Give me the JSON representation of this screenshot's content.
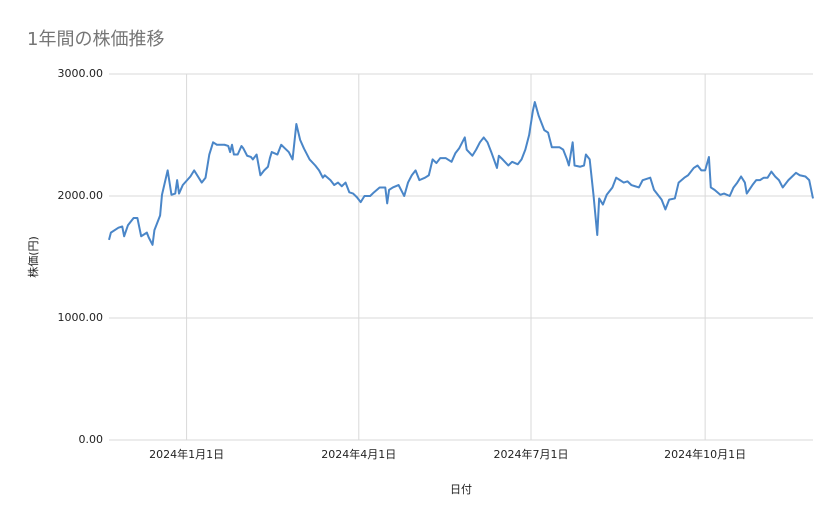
{
  "chart_data": {
    "type": "line",
    "title": "1年間の株価推移",
    "x_label": "日付",
    "y_label": "株価(円)",
    "color": "#4a86c8",
    "grid": true,
    "xlim": [
      "2023-11-21",
      "2024-11-27"
    ],
    "xticks": [
      {
        "value": "2024-01-01",
        "label": "2024年1月1日"
      },
      {
        "value": "2024-04-01",
        "label": "2024年4月1日"
      },
      {
        "value": "2024-07-01",
        "label": "2024年7月1日"
      },
      {
        "value": "2024-10-01",
        "label": "2024年10月1日"
      }
    ],
    "ylim": [
      0,
      3000
    ],
    "yticks": [
      {
        "value": 0,
        "label": "0.00"
      },
      {
        "value": 1000,
        "label": "1000.00"
      },
      {
        "value": 2000,
        "label": "2000.00"
      },
      {
        "value": 3000,
        "label": "3000.00"
      }
    ],
    "x": [
      "2023-11-21",
      "2023-11-22",
      "2023-11-26",
      "2023-11-28",
      "2023-11-29",
      "2023-12-01",
      "2023-12-04",
      "2023-12-06",
      "2023-12-08",
      "2023-12-11",
      "2023-12-12",
      "2023-12-14",
      "2023-12-15",
      "2023-12-18",
      "2023-12-19",
      "2023-12-22",
      "2023-12-24",
      "2023-12-26",
      "2023-12-27",
      "2023-12-28",
      "2023-12-30",
      "2024-01-03",
      "2024-01-05",
      "2024-01-09",
      "2024-01-11",
      "2024-01-13",
      "2024-01-15",
      "2024-01-17",
      "2024-01-21",
      "2024-01-23",
      "2024-01-24",
      "2024-01-25",
      "2024-01-26",
      "2024-01-28",
      "2024-01-30",
      "2024-01-31",
      "2024-02-02",
      "2024-02-04",
      "2024-02-05",
      "2024-02-07",
      "2024-02-09",
      "2024-02-11",
      "2024-02-13",
      "2024-02-14",
      "2024-02-15",
      "2024-02-18",
      "2024-02-20",
      "2024-02-22",
      "2024-02-24",
      "2024-02-26",
      "2024-02-28",
      "2024-03-01",
      "2024-03-03",
      "2024-03-06",
      "2024-03-09",
      "2024-03-11",
      "2024-03-13",
      "2024-03-14",
      "2024-03-17",
      "2024-03-19",
      "2024-03-21",
      "2024-03-23",
      "2024-03-25",
      "2024-03-27",
      "2024-03-29",
      "2024-03-31",
      "2024-04-02",
      "2024-04-04",
      "2024-04-07",
      "2024-04-09",
      "2024-04-12",
      "2024-04-15",
      "2024-04-16",
      "2024-04-17",
      "2024-04-19",
      "2024-04-22",
      "2024-04-24",
      "2024-04-25",
      "2024-04-27",
      "2024-04-29",
      "2024-05-01",
      "2024-05-03",
      "2024-05-06",
      "2024-05-08",
      "2024-05-10",
      "2024-05-12",
      "2024-05-14",
      "2024-05-17",
      "2024-05-20",
      "2024-05-22",
      "2024-05-24",
      "2024-05-27",
      "2024-05-28",
      "2024-05-31",
      "2024-06-02",
      "2024-06-04",
      "2024-06-06",
      "2024-06-08",
      "2024-06-10",
      "2024-06-13",
      "2024-06-14",
      "2024-06-16",
      "2024-06-19",
      "2024-06-21",
      "2024-06-24",
      "2024-06-26",
      "2024-06-28",
      "2024-06-30",
      "2024-07-02",
      "2024-07-03",
      "2024-07-05",
      "2024-07-08",
      "2024-07-10",
      "2024-07-12",
      "2024-07-16",
      "2024-07-18",
      "2024-07-20",
      "2024-07-21",
      "2024-07-23",
      "2024-07-24",
      "2024-07-27",
      "2024-07-29",
      "2024-07-30",
      "2024-08-01",
      "2024-08-03",
      "2024-08-05",
      "2024-08-06",
      "2024-08-08",
      "2024-08-10",
      "2024-08-13",
      "2024-08-15",
      "2024-08-17",
      "2024-08-19",
      "2024-08-21",
      "2024-08-23",
      "2024-08-25",
      "2024-08-27",
      "2024-08-29",
      "2024-09-02",
      "2024-09-04",
      "2024-09-06",
      "2024-09-08",
      "2024-09-10",
      "2024-09-12",
      "2024-09-15",
      "2024-09-17",
      "2024-09-20",
      "2024-09-22",
      "2024-09-25",
      "2024-09-27",
      "2024-09-29",
      "2024-10-01",
      "2024-10-03",
      "2024-10-04",
      "2024-10-06",
      "2024-10-09",
      "2024-10-11",
      "2024-10-14",
      "2024-10-16",
      "2024-10-18",
      "2024-10-20",
      "2024-10-22",
      "2024-10-23",
      "2024-10-26",
      "2024-10-28",
      "2024-10-30",
      "2024-11-01",
      "2024-11-03",
      "2024-11-05",
      "2024-11-07",
      "2024-11-09",
      "2024-11-11",
      "2024-11-14",
      "2024-11-16",
      "2024-11-18",
      "2024-11-20",
      "2024-11-23",
      "2024-11-25",
      "2024-11-27"
    ],
    "values": [
      1640,
      1700,
      1740,
      1750,
      1670,
      1760,
      1820,
      1820,
      1670,
      1700,
      1660,
      1600,
      1720,
      1840,
      2010,
      2210,
      2010,
      2020,
      2130,
      2020,
      2090,
      2160,
      2210,
      2110,
      2150,
      2340,
      2440,
      2420,
      2420,
      2410,
      2360,
      2420,
      2340,
      2340,
      2410,
      2390,
      2330,
      2320,
      2300,
      2340,
      2170,
      2210,
      2240,
      2310,
      2360,
      2340,
      2420,
      2390,
      2360,
      2300,
      2590,
      2460,
      2390,
      2300,
      2250,
      2210,
      2150,
      2170,
      2130,
      2090,
      2110,
      2080,
      2110,
      2030,
      2020,
      1990,
      1950,
      2000,
      2000,
      2030,
      2070,
      2070,
      1940,
      2050,
      2070,
      2090,
      2030,
      2000,
      2110,
      2170,
      2210,
      2130,
      2150,
      2170,
      2300,
      2270,
      2310,
      2310,
      2280,
      2350,
      2390,
      2480,
      2380,
      2330,
      2380,
      2440,
      2480,
      2440,
      2360,
      2230,
      2330,
      2300,
      2250,
      2280,
      2260,
      2300,
      2380,
      2500,
      2700,
      2770,
      2660,
      2540,
      2520,
      2400,
      2400,
      2380,
      2300,
      2250,
      2440,
      2250,
      2240,
      2250,
      2340,
      2300,
      2010,
      1680,
      1980,
      1930,
      2010,
      2070,
      2150,
      2130,
      2110,
      2120,
      2090,
      2080,
      2070,
      2130,
      2150,
      2050,
      2010,
      1970,
      1890,
      1970,
      1980,
      2110,
      2150,
      2170,
      2230,
      2250,
      2210,
      2210,
      2320,
      2070,
      2050,
      2010,
      2020,
      2000,
      2070,
      2110,
      2160,
      2110,
      2020,
      2090,
      2130,
      2130,
      2150,
      2150,
      2200,
      2160,
      2130,
      2070,
      2130,
      2160,
      2190,
      2170,
      2160,
      2130,
      1980
    ]
  }
}
